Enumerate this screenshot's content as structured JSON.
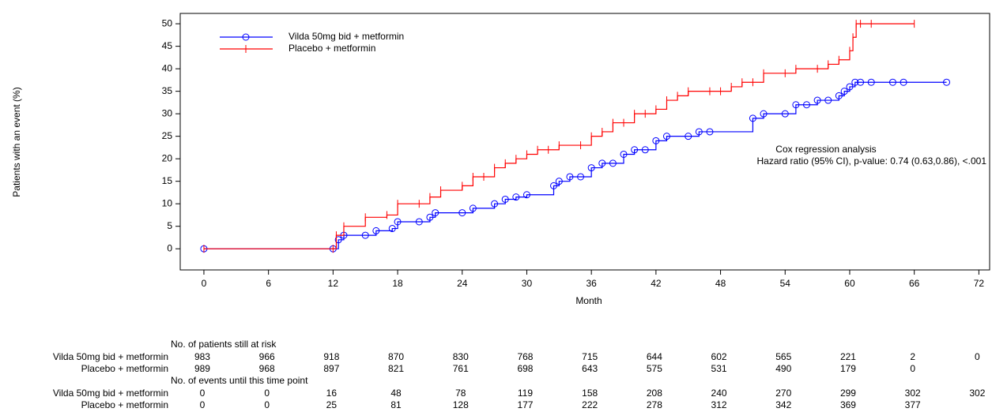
{
  "chart_data": {
    "type": "line",
    "drawstyle": "steps-post",
    "y_label": "Patients with an event (%)",
    "x_label": "Month",
    "xlim": [
      -2.2,
      73
    ],
    "ylim": [
      -4.7,
      52.3
    ],
    "xticks": [
      0,
      6,
      12,
      18,
      24,
      30,
      36,
      42,
      48,
      54,
      60,
      66,
      72
    ],
    "yticks": [
      0,
      5,
      10,
      15,
      20,
      25,
      30,
      35,
      40,
      45,
      50
    ],
    "legend": "upper left",
    "series": [
      {
        "name": "Vilda 50mg bid + metformin",
        "color": "#0000ff",
        "marker": "circle",
        "x": [
          0,
          12,
          12.5,
          13,
          15,
          16,
          17.5,
          18,
          20,
          21,
          21.5,
          24,
          25,
          27,
          28,
          29,
          30,
          32.5,
          33,
          34,
          35,
          36,
          37,
          38,
          39,
          40,
          41,
          42,
          43,
          45,
          46,
          47,
          51,
          52,
          54,
          55,
          56,
          57,
          58,
          59,
          59.5,
          60,
          60.5,
          61,
          62,
          64,
          65,
          69
        ],
        "values": [
          0,
          0,
          2,
          3,
          3,
          4,
          4.5,
          6,
          6,
          7,
          8,
          8,
          9,
          10,
          11,
          11.5,
          12,
          14,
          15,
          16,
          16,
          18,
          19,
          19,
          21,
          22,
          22,
          24,
          25,
          25,
          26,
          26,
          29,
          30,
          30,
          32,
          32,
          33,
          33,
          34,
          35,
          36,
          37,
          37,
          37,
          37,
          37,
          37
        ]
      },
      {
        "name": "Placebo + metformin",
        "color": "#ff0000",
        "marker": "plus",
        "x": [
          0,
          12,
          12.3,
          13,
          15,
          17,
          18,
          20,
          21,
          22,
          24,
          25,
          26,
          27,
          28,
          29,
          30,
          31,
          32,
          33,
          35,
          36,
          37,
          38,
          39,
          40,
          41,
          42,
          43,
          44,
          45,
          47,
          48,
          49,
          50,
          51,
          52,
          54,
          55,
          57,
          58,
          59,
          60,
          60.3,
          60.6,
          61,
          62,
          66
        ],
        "values": [
          0,
          0,
          3,
          5,
          7,
          7.5,
          10,
          10,
          11.5,
          13,
          14,
          16,
          16,
          18,
          19,
          20,
          21,
          22,
          22,
          23,
          23,
          25,
          26,
          28,
          28,
          30,
          30,
          31,
          33,
          34,
          35,
          35,
          35,
          36,
          37,
          37,
          39,
          39,
          40,
          40,
          41,
          42,
          44,
          47,
          50,
          50,
          50,
          50
        ]
      }
    ],
    "annotations": [
      "Cox regression analysis",
      "Hazard ratio (95% CI), p-value: 0.74 (0.63,0.86),  <.001"
    ],
    "risk_table": [
      {
        "title": "No. of patients still at risk",
        "rows": [
          [
            983,
            966,
            918,
            870,
            830,
            768,
            715,
            644,
            602,
            565,
            221,
            2,
            0
          ],
          [
            989,
            968,
            897,
            821,
            761,
            698,
            643,
            575,
            531,
            490,
            179,
            0,
            null
          ]
        ]
      },
      {
        "title": "No. of events until this time point",
        "rows": [
          [
            0,
            0,
            16,
            48,
            78,
            119,
            158,
            208,
            240,
            270,
            299,
            302,
            302
          ],
          [
            0,
            0,
            25,
            81,
            128,
            177,
            222,
            278,
            312,
            342,
            369,
            377,
            null
          ]
        ]
      }
    ]
  }
}
